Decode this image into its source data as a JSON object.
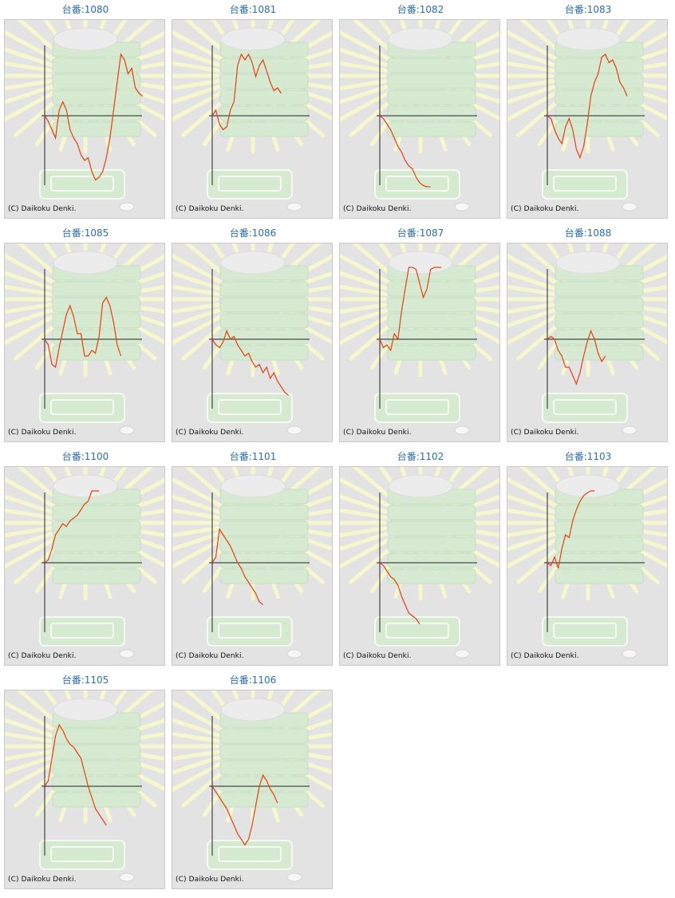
{
  "copyright": "(C) Daikoku Denki.",
  "chart_data": [
    {
      "type": "line",
      "title": "台番:1080",
      "y": [
        0,
        -2,
        -5,
        -8,
        2,
        5,
        2,
        -5,
        -8,
        -10,
        -14,
        -16,
        -15,
        -20,
        -23,
        -22,
        -20,
        -15,
        -8,
        2,
        12,
        22,
        20,
        15,
        17,
        10,
        8,
        7
      ]
    },
    {
      "type": "line",
      "title": "台番:1081",
      "y": [
        0,
        2,
        -3,
        -5,
        -4,
        2,
        5,
        18,
        22,
        20,
        22,
        19,
        14,
        18,
        20,
        16,
        12,
        9,
        10,
        8
      ]
    },
    {
      "type": "line",
      "title": "台番:1082",
      "y": [
        0,
        -1,
        -3,
        -5,
        -8,
        -11,
        -13,
        -16,
        -18,
        -19,
        -22,
        -24,
        -25,
        -26,
        -27
      ]
    },
    {
      "type": "line",
      "title": "台番:1083",
      "y": [
        0,
        -1,
        -5,
        -8,
        -10,
        -4,
        -1,
        -5,
        -12,
        -15,
        -11,
        -3,
        7,
        12,
        15,
        21,
        22,
        19,
        20,
        17,
        12,
        10,
        7
      ]
    },
    {
      "type": "line",
      "title": "台番:1085",
      "y": [
        0,
        -2,
        -9,
        -10,
        -3,
        3,
        9,
        12,
        8,
        2,
        2,
        -6,
        -6,
        -4,
        -5,
        1,
        13,
        15,
        12,
        6,
        -2,
        -6
      ]
    },
    {
      "type": "line",
      "title": "台番:1086",
      "y": [
        0,
        -2,
        -3,
        -1,
        3,
        0,
        1,
        -2,
        -4,
        -6,
        -5,
        -8,
        -10,
        -9,
        -12,
        -10,
        -14,
        -12,
        -15,
        -17,
        -19,
        -20
      ]
    },
    {
      "type": "line",
      "title": "台番:1087",
      "y": [
        0,
        -3,
        -2,
        -4,
        2,
        0,
        10,
        18,
        30,
        28,
        25,
        20,
        15,
        18,
        25,
        30,
        32,
        30
      ]
    },
    {
      "type": "line",
      "title": "台番:1088",
      "y": [
        0,
        1,
        0,
        -4,
        -6,
        -10,
        -10,
        -13,
        -16,
        -12,
        -6,
        -1,
        3,
        0,
        -5,
        -8,
        -6
      ]
    },
    {
      "type": "line",
      "title": "台番:1100",
      "y": [
        0,
        1,
        5,
        10,
        12,
        14,
        13,
        15,
        16,
        17,
        19,
        21,
        22,
        26,
        27,
        28
      ]
    },
    {
      "type": "line",
      "title": "台番:1101",
      "y": [
        0,
        2,
        12,
        10,
        8,
        6,
        3,
        0,
        -2,
        -5,
        -7,
        -9,
        -11,
        -14,
        -15
      ]
    },
    {
      "type": "line",
      "title": "台番:1102",
      "y": [
        0,
        -1,
        -3,
        -5,
        -6,
        -8,
        -12,
        -15,
        -18,
        -19,
        -20,
        -22
      ]
    },
    {
      "type": "line",
      "title": "台番:1103",
      "y": [
        0,
        -1,
        2,
        -2,
        5,
        10,
        9,
        15,
        19,
        22,
        24,
        25,
        30,
        32
      ]
    },
    {
      "type": "line",
      "title": "台番:1105",
      "y": [
        0,
        2,
        10,
        18,
        22,
        20,
        17,
        15,
        14,
        12,
        10,
        5,
        0,
        -4,
        -8,
        -10,
        -12,
        -14
      ]
    },
    {
      "type": "line",
      "title": "台番:1106",
      "y": [
        0,
        -2,
        -4,
        -6,
        -8,
        -11,
        -14,
        -17,
        -19,
        -21,
        -19,
        -14,
        -7,
        0,
        4,
        2,
        -1,
        -3,
        -6
      ]
    }
  ]
}
